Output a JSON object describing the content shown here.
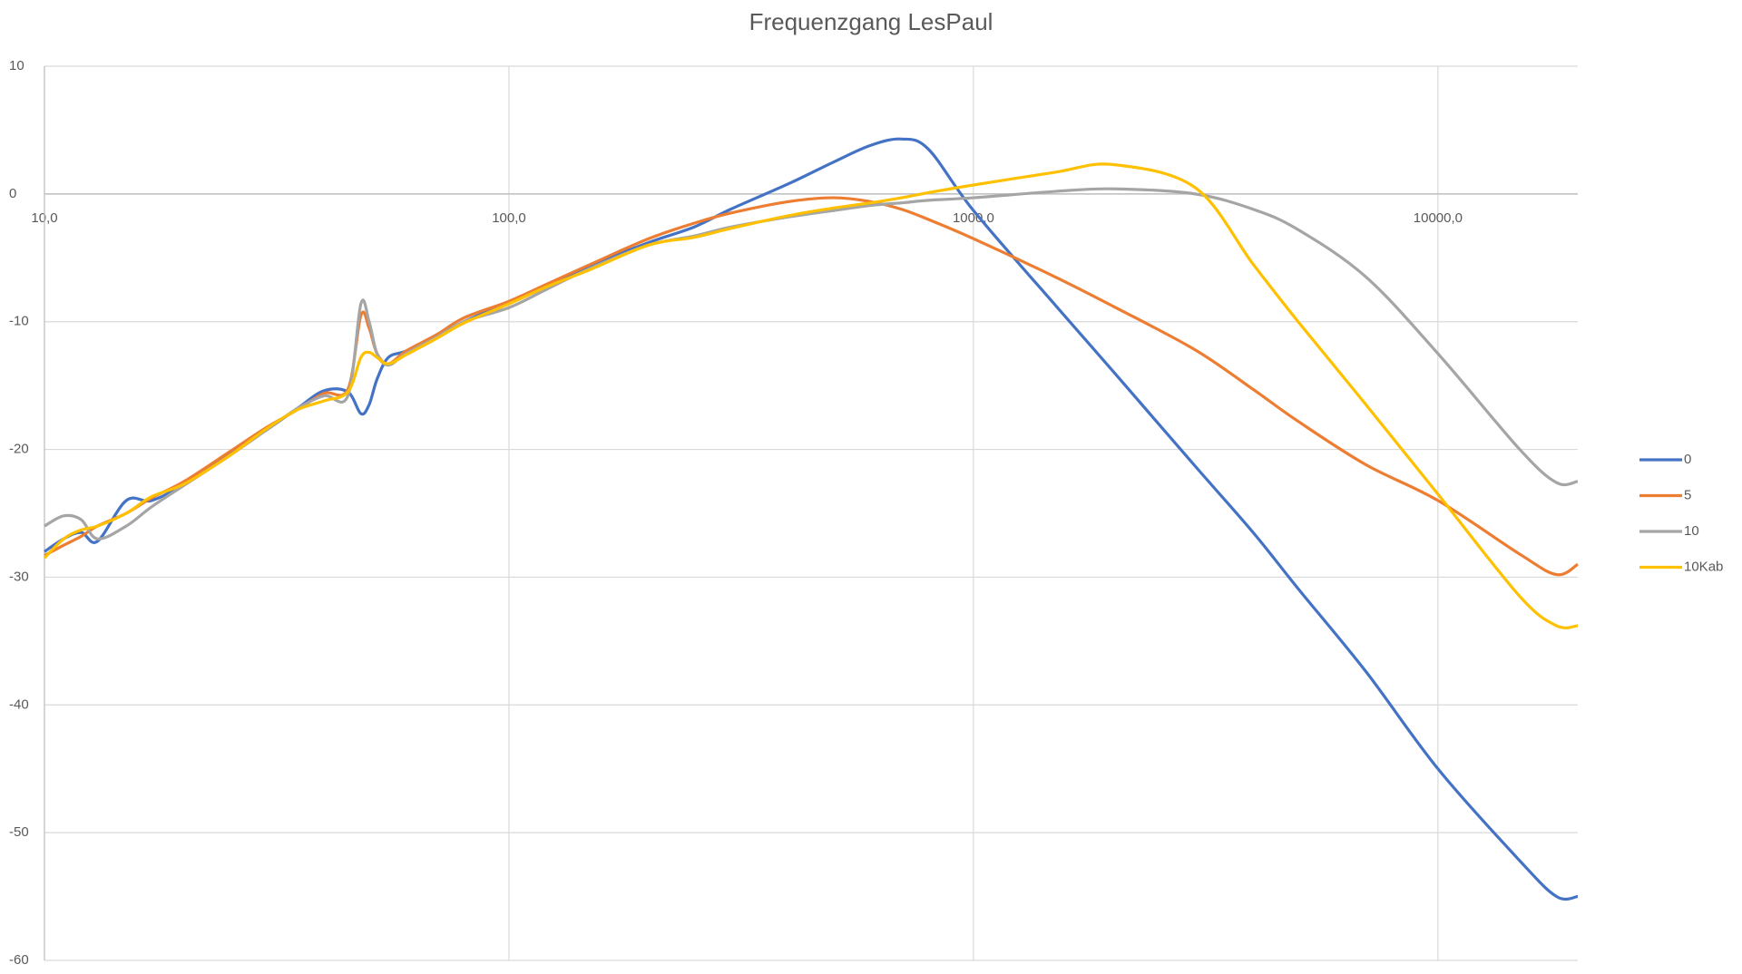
{
  "chart_data": {
    "type": "line",
    "title": "Frequenzgang LesPaul",
    "x": [
      10,
      11,
      12,
      13,
      15,
      17,
      20,
      25,
      30,
      35,
      40,
      45,
      48,
      50,
      52,
      55,
      60,
      70,
      80,
      100,
      120,
      150,
      200,
      250,
      300,
      400,
      500,
      600,
      700,
      800,
      1000,
      1500,
      2000,
      3000,
      4000,
      5000,
      7000,
      10000,
      15000,
      18000,
      20000
    ],
    "series": [
      {
        "name": "0",
        "color": "#4472c4",
        "values": [
          -28,
          -27,
          -26.5,
          -27.2,
          -24,
          -24,
          -22.7,
          -20.3,
          -18.5,
          -16.8,
          -15.4,
          -15.5,
          -17.2,
          -16.5,
          -14.5,
          -12.8,
          -12.3,
          -11.2,
          -10,
          -8.5,
          -7.2,
          -5.6,
          -3.8,
          -2.6,
          -1.2,
          0.8,
          2.5,
          3.8,
          4.3,
          3.5,
          -1.3,
          -8.7,
          -13.9,
          -21.3,
          -26.5,
          -30.9,
          -37.4,
          -45,
          -52.2,
          -55,
          -55
        ]
      },
      {
        "name": "5",
        "color": "#ed7d31",
        "values": [
          -28.3,
          -27.5,
          -26.8,
          -26,
          -25,
          -23.8,
          -22.5,
          -20.2,
          -18.3,
          -16.9,
          -15.6,
          -15.3,
          -9.5,
          -10.5,
          -12.5,
          -13.3,
          -12.3,
          -11,
          -9.7,
          -8.4,
          -7.1,
          -5.5,
          -3.5,
          -2.3,
          -1.5,
          -0.6,
          -0.3,
          -0.6,
          -1.2,
          -2,
          -3.5,
          -6.5,
          -8.8,
          -12.2,
          -15.3,
          -17.8,
          -21.2,
          -24,
          -28.2,
          -29.8,
          -29
        ]
      },
      {
        "name": "10",
        "color": "#a5a5a5",
        "values": [
          -26,
          -25.2,
          -25.5,
          -27,
          -26,
          -24.5,
          -22.8,
          -20.5,
          -18.5,
          -16.8,
          -15.8,
          -15.8,
          -8.6,
          -10,
          -12.5,
          -13.4,
          -12.5,
          -11.2,
          -10,
          -8.9,
          -7.5,
          -5.8,
          -4,
          -3.3,
          -2.6,
          -1.8,
          -1.3,
          -0.9,
          -0.7,
          -0.5,
          -0.3,
          0.2,
          0.4,
          0,
          -1.2,
          -2.8,
          -6.5,
          -12.5,
          -20,
          -22.6,
          -22.5
        ]
      },
      {
        "name": "10Kab",
        "color": "#ffc000",
        "values": [
          -28.5,
          -27,
          -26.3,
          -26,
          -25,
          -23.7,
          -22.7,
          -20.5,
          -18.4,
          -16.9,
          -16.2,
          -15.5,
          -12.8,
          -12.4,
          -12.8,
          -13.3,
          -12.6,
          -11.3,
          -10.1,
          -8.6,
          -7.3,
          -5.9,
          -4,
          -3.4,
          -2.7,
          -1.7,
          -1.1,
          -0.7,
          -0.3,
          0.1,
          0.7,
          1.7,
          2.3,
          0.5,
          -5.5,
          -10,
          -16.5,
          -23.5,
          -31.5,
          -33.8,
          -33.8
        ]
      }
    ],
    "xlog": true,
    "xlim": [
      10,
      20000
    ],
    "xticks": [
      {
        "value": 10,
        "label": "10,0"
      },
      {
        "value": 100,
        "label": "100,0"
      },
      {
        "value": 1000,
        "label": "1000,0"
      },
      {
        "value": 10000,
        "label": "10000,0"
      }
    ],
    "ylim": [
      -60,
      10
    ],
    "yticks": [
      10,
      0,
      -10,
      -20,
      -30,
      -40,
      -50,
      -60
    ],
    "grid": true,
    "legend": "right"
  }
}
